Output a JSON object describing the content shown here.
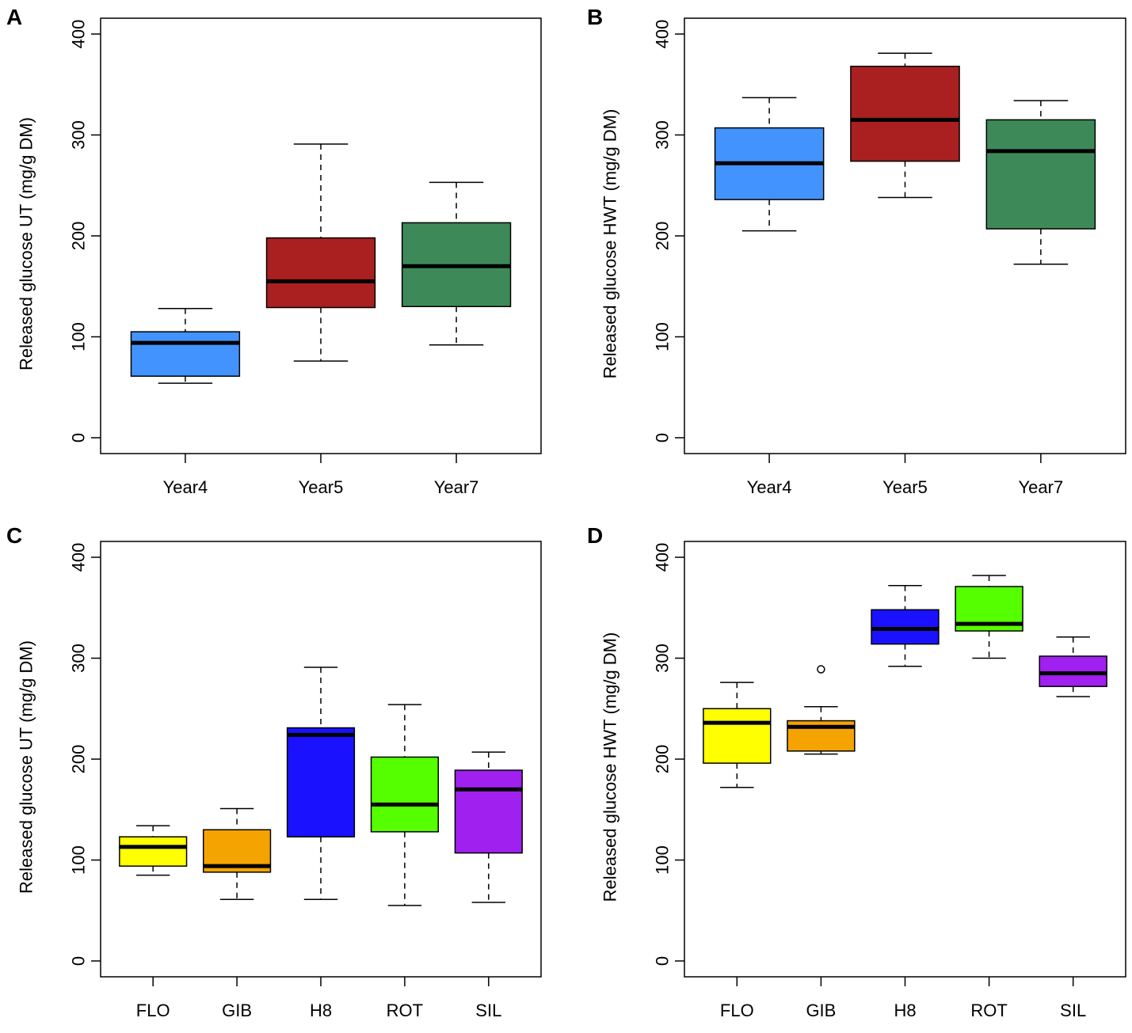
{
  "chart_data": [
    {
      "panel": "A",
      "type": "boxplot",
      "ylabel": "Released glucose UT (mg/g DM)",
      "ylim": [
        0,
        400
      ],
      "yticks": [
        0,
        100,
        200,
        300,
        400
      ],
      "categories": [
        "Year4",
        "Year5",
        "Year7"
      ],
      "boxes": [
        {
          "name": "Year4",
          "min": 54,
          "q1": 61,
          "median": 94,
          "q3": 105,
          "max": 128,
          "outliers": [],
          "color": "#4393ff"
        },
        {
          "name": "Year5",
          "min": 76,
          "q1": 129,
          "median": 155,
          "q3": 198,
          "max": 291,
          "outliers": [],
          "color": "#aa2020"
        },
        {
          "name": "Year7",
          "min": 92,
          "q1": 130,
          "median": 170,
          "q3": 213,
          "max": 253,
          "outliers": [],
          "color": "#3d8a58"
        }
      ]
    },
    {
      "panel": "B",
      "type": "boxplot",
      "ylabel": "Released glucose HWT (mg/g DM)",
      "ylim": [
        0,
        400
      ],
      "yticks": [
        0,
        100,
        200,
        300,
        400
      ],
      "categories": [
        "Year4",
        "Year5",
        "Year7"
      ],
      "boxes": [
        {
          "name": "Year4",
          "min": 205,
          "q1": 236,
          "median": 272,
          "q3": 307,
          "max": 337,
          "outliers": [],
          "color": "#4393ff"
        },
        {
          "name": "Year5",
          "min": 238,
          "q1": 274,
          "median": 315,
          "q3": 368,
          "max": 381,
          "outliers": [],
          "color": "#aa2020"
        },
        {
          "name": "Year7",
          "min": 172,
          "q1": 207,
          "median": 284,
          "q3": 315,
          "max": 334,
          "outliers": [],
          "color": "#3d8a58"
        }
      ]
    },
    {
      "panel": "C",
      "type": "boxplot",
      "ylabel": "Released glucose UT (mg/g DM)",
      "ylim": [
        0,
        400
      ],
      "yticks": [
        0,
        100,
        200,
        300,
        400
      ],
      "categories": [
        "FLO",
        "GIB",
        "H8",
        "ROT",
        "SIL"
      ],
      "boxes": [
        {
          "name": "FLO",
          "min": 85,
          "q1": 94,
          "median": 113,
          "q3": 123,
          "max": 134,
          "outliers": [],
          "color": "#ffff00"
        },
        {
          "name": "GIB",
          "min": 61,
          "q1": 88,
          "median": 94,
          "q3": 130,
          "max": 151,
          "outliers": [],
          "color": "#f5a300"
        },
        {
          "name": "H8",
          "min": 61,
          "q1": 123,
          "median": 224,
          "q3": 231,
          "max": 291,
          "outliers": [],
          "color": "#1a12ff"
        },
        {
          "name": "ROT",
          "min": 55,
          "q1": 128,
          "median": 155,
          "q3": 202,
          "max": 254,
          "outliers": [],
          "color": "#55ff00"
        },
        {
          "name": "SIL",
          "min": 58,
          "q1": 107,
          "median": 170,
          "q3": 189,
          "max": 207,
          "outliers": [],
          "color": "#a020f0"
        }
      ]
    },
    {
      "panel": "D",
      "type": "boxplot",
      "ylabel": "Released glucose HWT (mg/g DM)",
      "ylim": [
        0,
        400
      ],
      "yticks": [
        0,
        100,
        200,
        300,
        400
      ],
      "categories": [
        "FLO",
        "GIB",
        "H8",
        "ROT",
        "SIL"
      ],
      "boxes": [
        {
          "name": "FLO",
          "min": 172,
          "q1": 196,
          "median": 236,
          "q3": 250,
          "max": 276,
          "outliers": [],
          "color": "#ffff00"
        },
        {
          "name": "GIB",
          "min": 205,
          "q1": 208,
          "median": 232,
          "q3": 238,
          "max": 252,
          "outliers": [
            289
          ],
          "color": "#f5a300"
        },
        {
          "name": "H8",
          "min": 292,
          "q1": 314,
          "median": 329,
          "q3": 348,
          "max": 372,
          "outliers": [],
          "color": "#1a12ff"
        },
        {
          "name": "ROT",
          "min": 300,
          "q1": 327,
          "median": 334,
          "q3": 371,
          "max": 382,
          "outliers": [],
          "color": "#55ff00"
        },
        {
          "name": "SIL",
          "min": 262,
          "q1": 272,
          "median": 285,
          "q3": 302,
          "max": 321,
          "outliers": [],
          "color": "#a020f0"
        }
      ]
    }
  ]
}
